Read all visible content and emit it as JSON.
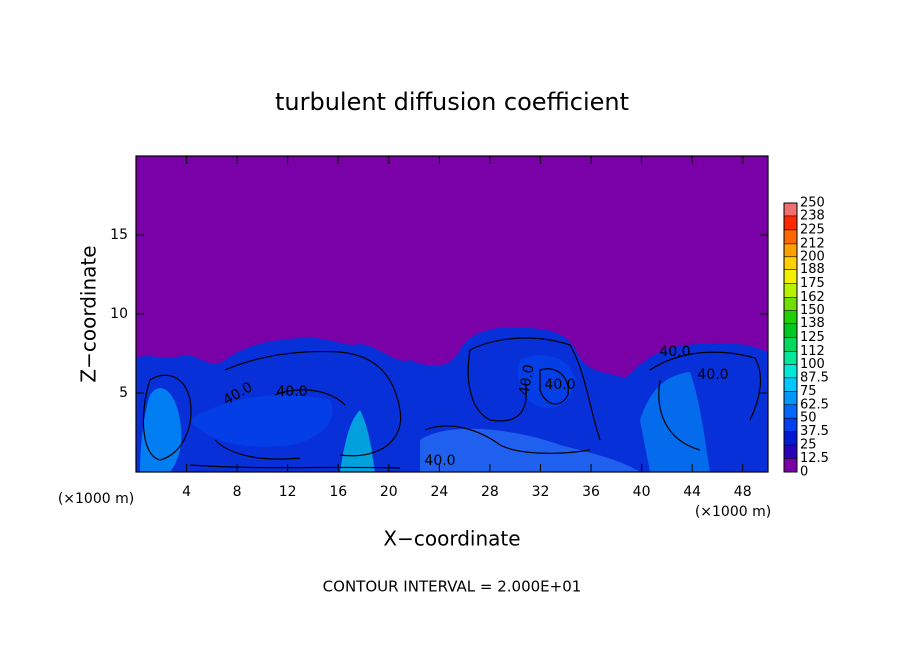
{
  "chart_data": {
    "type": "contour",
    "title": "turbulent diffusion coefficient",
    "x_label": "X−coordinate",
    "y_label": "Z−coordinate",
    "x_unit": "(×1000 m)",
    "x_unit_right": "(×1000 m)",
    "footer": "CONTOUR INTERVAL = 2.000E+01",
    "xlim": [
      0,
      50
    ],
    "xticks": [
      4,
      8,
      12,
      16,
      20,
      24,
      28,
      32,
      36,
      40,
      44,
      48
    ],
    "ylim": [
      0,
      20
    ],
    "yticks": [
      5,
      10,
      15
    ],
    "contour_labels": [
      "40.0",
      "40.0",
      "40.0",
      "40.0",
      "40.0",
      "40.0",
      "40.0"
    ],
    "colorbar": {
      "ticks": [
        0,
        12.5,
        25,
        37.5,
        50,
        62.5,
        75,
        87.5,
        100,
        112,
        125,
        138,
        150,
        162,
        175,
        188,
        200,
        212,
        225,
        238,
        250
      ],
      "colors": [
        "#7a00a8",
        "#2a00b8",
        "#0018d0",
        "#0040f0",
        "#0068ff",
        "#0098ff",
        "#00c8ff",
        "#00e8d8",
        "#00e898",
        "#00d860",
        "#00c820",
        "#20d000",
        "#70e000",
        "#b8f000",
        "#f0f000",
        "#ffd000",
        "#ffa000",
        "#ff6800",
        "#ff2800",
        "#f07070"
      ]
    }
  }
}
